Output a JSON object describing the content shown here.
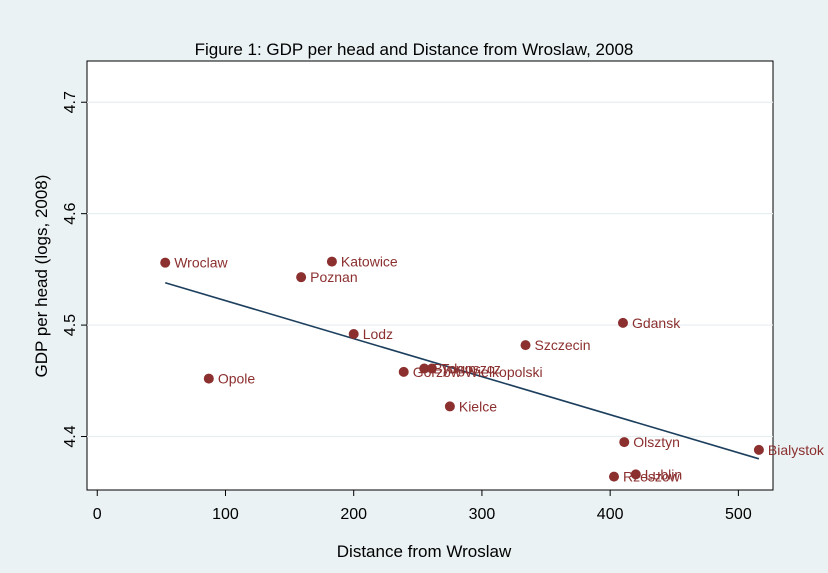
{
  "chart_data": {
    "type": "scatter",
    "title": "Figure 1: GDP per head and Distance from Wroslaw, 2008",
    "xlabel": "Distance from Wroslaw",
    "ylabel": "GDP per head (logs, 2008)",
    "xlim": [
      -8,
      527
    ],
    "ylim": [
      4.352,
      4.737
    ],
    "xticks": [
      0,
      100,
      200,
      300,
      400,
      500
    ],
    "yticks": [
      4.4,
      4.5,
      4.6,
      4.7
    ],
    "grid": true,
    "marker_color": "#8b2f2f",
    "fit_line_color": "#1d3f5e",
    "fit_line": {
      "x": [
        53,
        516
      ],
      "y": [
        4.538,
        4.38
      ]
    },
    "points": [
      {
        "label": "Wroclaw",
        "x": 53,
        "y": 4.556
      },
      {
        "label": "Katowice",
        "x": 183,
        "y": 4.557
      },
      {
        "label": "Poznan",
        "x": 159,
        "y": 4.543
      },
      {
        "label": "Opole",
        "x": 87,
        "y": 4.452
      },
      {
        "label": "Lodz",
        "x": 200,
        "y": 4.492
      },
      {
        "label": "Gdansk",
        "x": 410,
        "y": 4.502
      },
      {
        "label": "Szczecin",
        "x": 334,
        "y": 4.482
      },
      {
        "label": "Gorzow Wielkopolski",
        "x": 239,
        "y": 4.458
      },
      {
        "label": "Bydgoszcz",
        "x": 255,
        "y": 4.461
      },
      {
        "label": "Torun",
        "x": 261,
        "y": 4.461
      },
      {
        "label": "Kielce",
        "x": 275,
        "y": 4.427
      },
      {
        "label": "Olsztyn",
        "x": 411,
        "y": 4.395
      },
      {
        "label": "Bialystok",
        "x": 516,
        "y": 4.388
      },
      {
        "label": "Lublin",
        "x": 420,
        "y": 4.366
      },
      {
        "label": "Rzeszow",
        "x": 403,
        "y": 4.364
      }
    ]
  }
}
